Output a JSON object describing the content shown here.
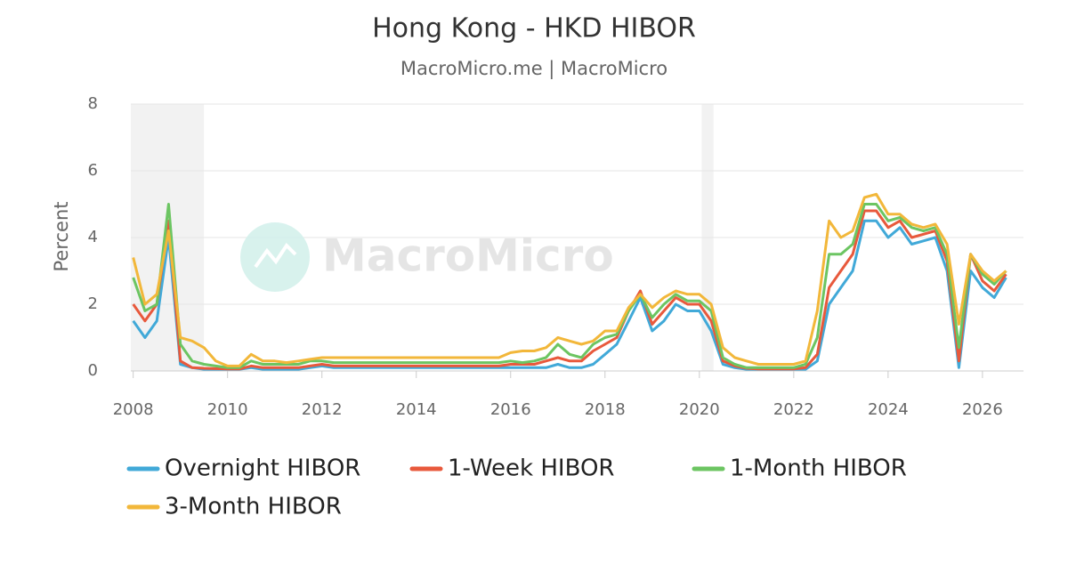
{
  "chart_data": {
    "type": "line",
    "title": "Hong Kong - HKD HIBOR",
    "subtitle": "MacroMicro.me | MacroMicro",
    "watermark": "MacroMicro",
    "y_label": "Percent",
    "x": [
      2008,
      2008.25,
      2008.5,
      2008.75,
      2009,
      2009.25,
      2009.5,
      2009.75,
      2010,
      2010.25,
      2010.5,
      2010.75,
      2011,
      2011.25,
      2011.5,
      2011.75,
      2012,
      2012.25,
      2012.5,
      2012.75,
      2013,
      2013.25,
      2013.5,
      2013.75,
      2014,
      2014.25,
      2014.5,
      2014.75,
      2015,
      2015.25,
      2015.5,
      2015.75,
      2016,
      2016.25,
      2016.5,
      2016.75,
      2017,
      2017.25,
      2017.5,
      2017.75,
      2018,
      2018.25,
      2018.5,
      2018.75,
      2019,
      2019.25,
      2019.5,
      2019.75,
      2020,
      2020.25,
      2020.5,
      2020.75,
      2021,
      2021.25,
      2021.5,
      2021.75,
      2022,
      2022.25,
      2022.5,
      2022.75,
      2023,
      2023.25,
      2023.5,
      2023.75,
      2024,
      2024.25,
      2024.5,
      2024.75,
      2025,
      2025.25,
      2025.5,
      2025.75,
      2026,
      2026.25,
      2026.5
    ],
    "series": [
      {
        "name": "Overnight HIBOR",
        "color": "#41a9d8",
        "values": [
          1.5,
          1.0,
          1.5,
          4.0,
          0.2,
          0.1,
          0.05,
          0.05,
          0.05,
          0.05,
          0.1,
          0.05,
          0.05,
          0.05,
          0.05,
          0.1,
          0.15,
          0.1,
          0.1,
          0.1,
          0.1,
          0.1,
          0.1,
          0.1,
          0.1,
          0.1,
          0.1,
          0.1,
          0.1,
          0.1,
          0.1,
          0.1,
          0.1,
          0.1,
          0.1,
          0.1,
          0.2,
          0.1,
          0.1,
          0.2,
          0.5,
          0.8,
          1.5,
          2.2,
          1.2,
          1.5,
          2.0,
          1.8,
          1.8,
          1.2,
          0.2,
          0.1,
          0.05,
          0.05,
          0.05,
          0.05,
          0.05,
          0.05,
          0.3,
          2.0,
          2.5,
          3.0,
          4.5,
          4.5,
          4.0,
          4.3,
          3.8,
          3.9,
          4.0,
          3.0,
          0.1,
          3.0,
          2.5,
          2.2,
          2.8
        ]
      },
      {
        "name": "1-Week HIBOR",
        "color": "#e8593c",
        "values": [
          2.0,
          1.5,
          2.0,
          4.5,
          0.3,
          0.1,
          0.08,
          0.07,
          0.06,
          0.06,
          0.15,
          0.1,
          0.1,
          0.1,
          0.1,
          0.15,
          0.2,
          0.15,
          0.15,
          0.15,
          0.15,
          0.15,
          0.15,
          0.15,
          0.15,
          0.15,
          0.15,
          0.15,
          0.15,
          0.15,
          0.15,
          0.15,
          0.2,
          0.2,
          0.2,
          0.3,
          0.4,
          0.3,
          0.3,
          0.6,
          0.8,
          1.0,
          1.8,
          2.4,
          1.4,
          1.8,
          2.2,
          2.0,
          2.0,
          1.5,
          0.3,
          0.15,
          0.08,
          0.06,
          0.06,
          0.06,
          0.06,
          0.1,
          0.5,
          2.5,
          3.0,
          3.5,
          4.8,
          4.8,
          4.3,
          4.5,
          4.0,
          4.1,
          4.2,
          3.3,
          0.3,
          3.5,
          2.7,
          2.4,
          2.9
        ]
      },
      {
        "name": "1-Month HIBOR",
        "color": "#6cc562",
        "values": [
          2.8,
          1.8,
          2.0,
          5.0,
          0.8,
          0.3,
          0.2,
          0.15,
          0.1,
          0.1,
          0.3,
          0.2,
          0.2,
          0.2,
          0.2,
          0.3,
          0.3,
          0.25,
          0.25,
          0.25,
          0.25,
          0.25,
          0.25,
          0.25,
          0.25,
          0.25,
          0.25,
          0.25,
          0.25,
          0.25,
          0.25,
          0.25,
          0.3,
          0.25,
          0.3,
          0.4,
          0.8,
          0.5,
          0.4,
          0.8,
          1.0,
          1.1,
          1.8,
          2.3,
          1.6,
          2.0,
          2.3,
          2.1,
          2.1,
          1.8,
          0.4,
          0.2,
          0.1,
          0.1,
          0.1,
          0.1,
          0.1,
          0.2,
          1.0,
          3.5,
          3.5,
          3.8,
          5.0,
          5.0,
          4.5,
          4.6,
          4.3,
          4.2,
          4.3,
          3.5,
          0.7,
          3.5,
          2.9,
          2.6,
          3.0
        ]
      },
      {
        "name": "3-Month HIBOR",
        "color": "#f2b73a",
        "values": [
          3.4,
          2.0,
          2.3,
          4.2,
          1.0,
          0.9,
          0.7,
          0.3,
          0.15,
          0.15,
          0.5,
          0.3,
          0.3,
          0.25,
          0.3,
          0.35,
          0.4,
          0.4,
          0.4,
          0.4,
          0.4,
          0.4,
          0.4,
          0.4,
          0.4,
          0.4,
          0.4,
          0.4,
          0.4,
          0.4,
          0.4,
          0.4,
          0.55,
          0.6,
          0.6,
          0.7,
          1.0,
          0.9,
          0.8,
          0.9,
          1.2,
          1.2,
          1.9,
          2.3,
          1.9,
          2.2,
          2.4,
          2.3,
          2.3,
          2.0,
          0.7,
          0.4,
          0.3,
          0.2,
          0.2,
          0.2,
          0.2,
          0.3,
          1.8,
          4.5,
          4.0,
          4.2,
          5.2,
          5.3,
          4.7,
          4.7,
          4.4,
          4.3,
          4.4,
          3.8,
          1.4,
          3.5,
          3.0,
          2.7,
          3.0
        ]
      }
    ],
    "shaded_periods": [
      [
        2007.95,
        2009.5
      ],
      [
        2020.05,
        2020.3
      ]
    ],
    "xlim": [
      2007.95,
      2026.87
    ],
    "xticks": [
      2008,
      2010,
      2012,
      2014,
      2016,
      2018,
      2020,
      2022,
      2024,
      2026
    ],
    "ylim": [
      0,
      8
    ],
    "yticks": [
      0,
      2,
      4,
      6,
      8
    ],
    "grid": true
  }
}
